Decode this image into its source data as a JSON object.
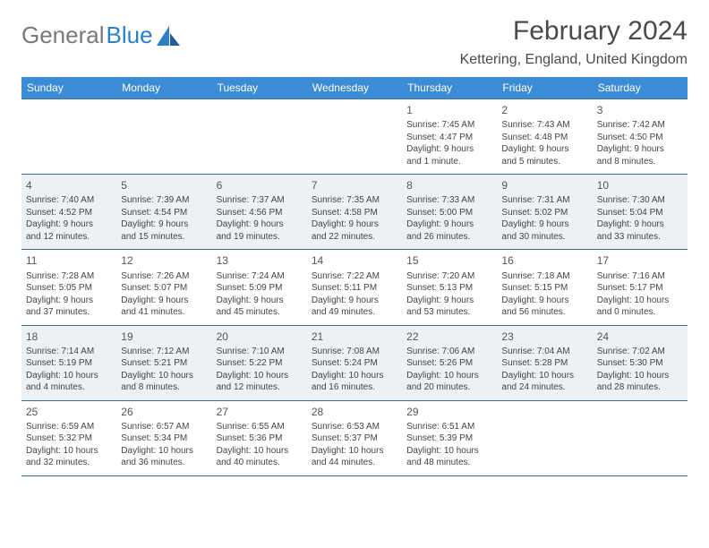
{
  "logo": {
    "text1": "General",
    "text2": "Blue"
  },
  "header": {
    "title": "February 2024",
    "location": "Kettering, England, United Kingdom"
  },
  "colors": {
    "header_bg": "#3b8cd4",
    "header_text": "#ffffff",
    "row_border": "#3b6f9f",
    "alt_row_bg": "#eef1f3",
    "logo_gray": "#7a7a7a",
    "logo_blue": "#2a7fc5"
  },
  "weekdays": [
    "Sunday",
    "Monday",
    "Tuesday",
    "Wednesday",
    "Thursday",
    "Friday",
    "Saturday"
  ],
  "weeks": [
    {
      "alt": false,
      "days": [
        null,
        null,
        null,
        null,
        {
          "n": "1",
          "sunrise": "Sunrise: 7:45 AM",
          "sunset": "Sunset: 4:47 PM",
          "day1": "Daylight: 9 hours",
          "day2": "and 1 minute."
        },
        {
          "n": "2",
          "sunrise": "Sunrise: 7:43 AM",
          "sunset": "Sunset: 4:48 PM",
          "day1": "Daylight: 9 hours",
          "day2": "and 5 minutes."
        },
        {
          "n": "3",
          "sunrise": "Sunrise: 7:42 AM",
          "sunset": "Sunset: 4:50 PM",
          "day1": "Daylight: 9 hours",
          "day2": "and 8 minutes."
        }
      ]
    },
    {
      "alt": true,
      "days": [
        {
          "n": "4",
          "sunrise": "Sunrise: 7:40 AM",
          "sunset": "Sunset: 4:52 PM",
          "day1": "Daylight: 9 hours",
          "day2": "and 12 minutes."
        },
        {
          "n": "5",
          "sunrise": "Sunrise: 7:39 AM",
          "sunset": "Sunset: 4:54 PM",
          "day1": "Daylight: 9 hours",
          "day2": "and 15 minutes."
        },
        {
          "n": "6",
          "sunrise": "Sunrise: 7:37 AM",
          "sunset": "Sunset: 4:56 PM",
          "day1": "Daylight: 9 hours",
          "day2": "and 19 minutes."
        },
        {
          "n": "7",
          "sunrise": "Sunrise: 7:35 AM",
          "sunset": "Sunset: 4:58 PM",
          "day1": "Daylight: 9 hours",
          "day2": "and 22 minutes."
        },
        {
          "n": "8",
          "sunrise": "Sunrise: 7:33 AM",
          "sunset": "Sunset: 5:00 PM",
          "day1": "Daylight: 9 hours",
          "day2": "and 26 minutes."
        },
        {
          "n": "9",
          "sunrise": "Sunrise: 7:31 AM",
          "sunset": "Sunset: 5:02 PM",
          "day1": "Daylight: 9 hours",
          "day2": "and 30 minutes."
        },
        {
          "n": "10",
          "sunrise": "Sunrise: 7:30 AM",
          "sunset": "Sunset: 5:04 PM",
          "day1": "Daylight: 9 hours",
          "day2": "and 33 minutes."
        }
      ]
    },
    {
      "alt": false,
      "days": [
        {
          "n": "11",
          "sunrise": "Sunrise: 7:28 AM",
          "sunset": "Sunset: 5:05 PM",
          "day1": "Daylight: 9 hours",
          "day2": "and 37 minutes."
        },
        {
          "n": "12",
          "sunrise": "Sunrise: 7:26 AM",
          "sunset": "Sunset: 5:07 PM",
          "day1": "Daylight: 9 hours",
          "day2": "and 41 minutes."
        },
        {
          "n": "13",
          "sunrise": "Sunrise: 7:24 AM",
          "sunset": "Sunset: 5:09 PM",
          "day1": "Daylight: 9 hours",
          "day2": "and 45 minutes."
        },
        {
          "n": "14",
          "sunrise": "Sunrise: 7:22 AM",
          "sunset": "Sunset: 5:11 PM",
          "day1": "Daylight: 9 hours",
          "day2": "and 49 minutes."
        },
        {
          "n": "15",
          "sunrise": "Sunrise: 7:20 AM",
          "sunset": "Sunset: 5:13 PM",
          "day1": "Daylight: 9 hours",
          "day2": "and 53 minutes."
        },
        {
          "n": "16",
          "sunrise": "Sunrise: 7:18 AM",
          "sunset": "Sunset: 5:15 PM",
          "day1": "Daylight: 9 hours",
          "day2": "and 56 minutes."
        },
        {
          "n": "17",
          "sunrise": "Sunrise: 7:16 AM",
          "sunset": "Sunset: 5:17 PM",
          "day1": "Daylight: 10 hours",
          "day2": "and 0 minutes."
        }
      ]
    },
    {
      "alt": true,
      "days": [
        {
          "n": "18",
          "sunrise": "Sunrise: 7:14 AM",
          "sunset": "Sunset: 5:19 PM",
          "day1": "Daylight: 10 hours",
          "day2": "and 4 minutes."
        },
        {
          "n": "19",
          "sunrise": "Sunrise: 7:12 AM",
          "sunset": "Sunset: 5:21 PM",
          "day1": "Daylight: 10 hours",
          "day2": "and 8 minutes."
        },
        {
          "n": "20",
          "sunrise": "Sunrise: 7:10 AM",
          "sunset": "Sunset: 5:22 PM",
          "day1": "Daylight: 10 hours",
          "day2": "and 12 minutes."
        },
        {
          "n": "21",
          "sunrise": "Sunrise: 7:08 AM",
          "sunset": "Sunset: 5:24 PM",
          "day1": "Daylight: 10 hours",
          "day2": "and 16 minutes."
        },
        {
          "n": "22",
          "sunrise": "Sunrise: 7:06 AM",
          "sunset": "Sunset: 5:26 PM",
          "day1": "Daylight: 10 hours",
          "day2": "and 20 minutes."
        },
        {
          "n": "23",
          "sunrise": "Sunrise: 7:04 AM",
          "sunset": "Sunset: 5:28 PM",
          "day1": "Daylight: 10 hours",
          "day2": "and 24 minutes."
        },
        {
          "n": "24",
          "sunrise": "Sunrise: 7:02 AM",
          "sunset": "Sunset: 5:30 PM",
          "day1": "Daylight: 10 hours",
          "day2": "and 28 minutes."
        }
      ]
    },
    {
      "alt": false,
      "days": [
        {
          "n": "25",
          "sunrise": "Sunrise: 6:59 AM",
          "sunset": "Sunset: 5:32 PM",
          "day1": "Daylight: 10 hours",
          "day2": "and 32 minutes."
        },
        {
          "n": "26",
          "sunrise": "Sunrise: 6:57 AM",
          "sunset": "Sunset: 5:34 PM",
          "day1": "Daylight: 10 hours",
          "day2": "and 36 minutes."
        },
        {
          "n": "27",
          "sunrise": "Sunrise: 6:55 AM",
          "sunset": "Sunset: 5:36 PM",
          "day1": "Daylight: 10 hours",
          "day2": "and 40 minutes."
        },
        {
          "n": "28",
          "sunrise": "Sunrise: 6:53 AM",
          "sunset": "Sunset: 5:37 PM",
          "day1": "Daylight: 10 hours",
          "day2": "and 44 minutes."
        },
        {
          "n": "29",
          "sunrise": "Sunrise: 6:51 AM",
          "sunset": "Sunset: 5:39 PM",
          "day1": "Daylight: 10 hours",
          "day2": "and 48 minutes."
        },
        null,
        null
      ]
    }
  ]
}
